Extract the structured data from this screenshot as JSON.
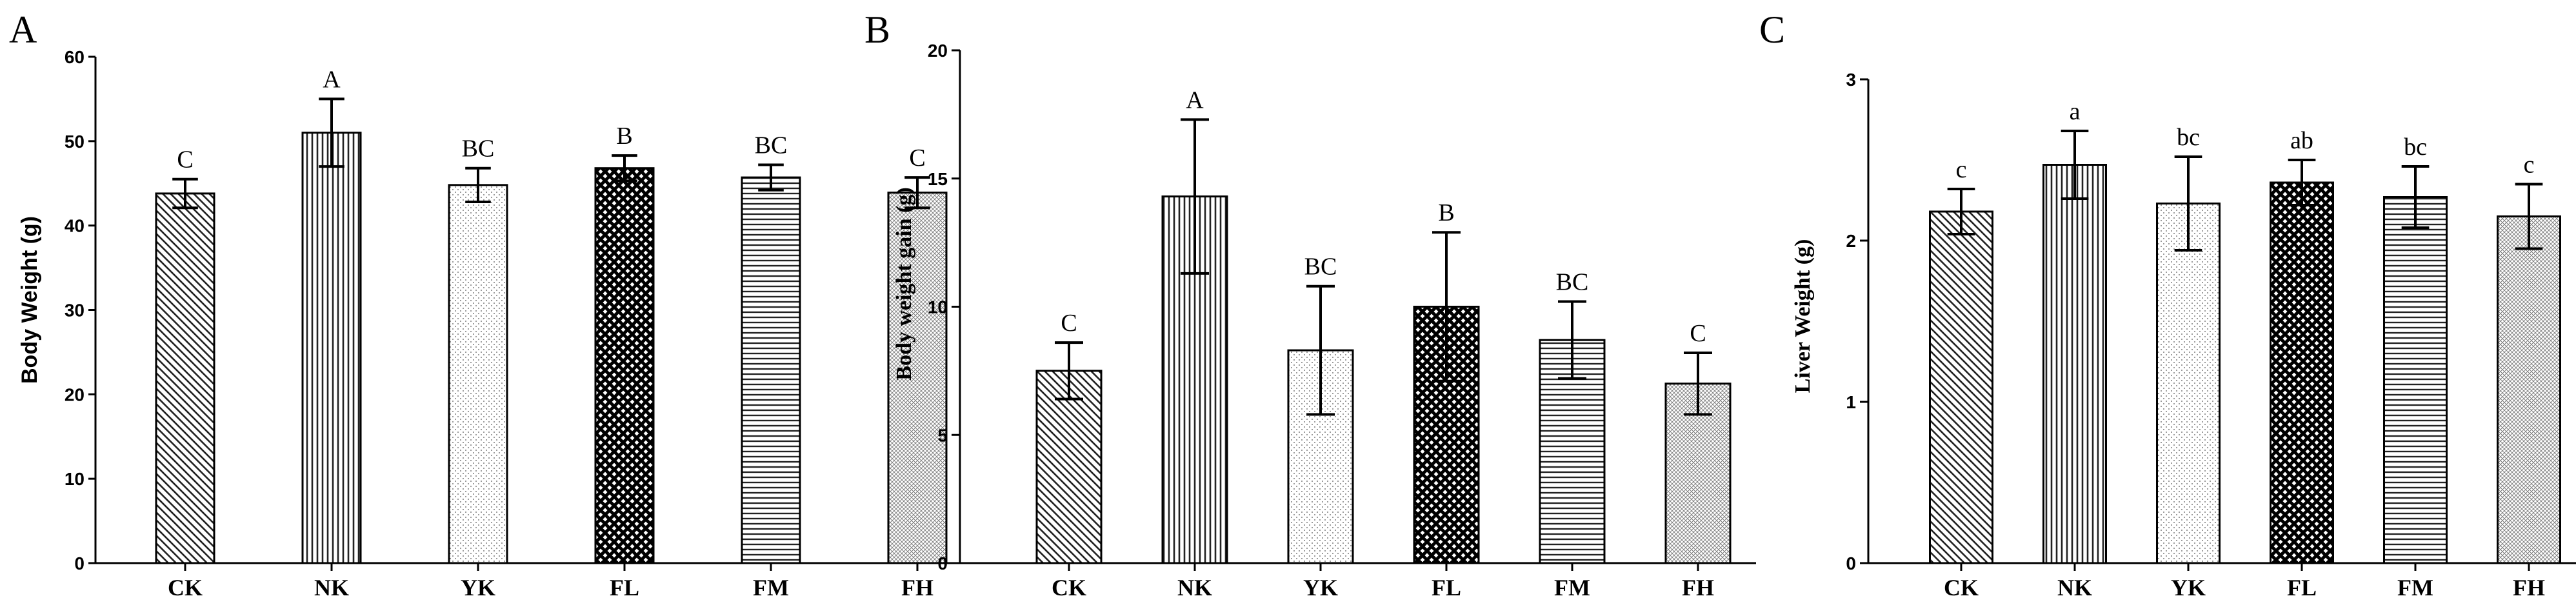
{
  "figure": {
    "panel_letters": [
      "A",
      "B",
      "C"
    ]
  },
  "chart_data": [
    {
      "panel": "A",
      "type": "bar",
      "title": "",
      "xlabel": "",
      "ylabel": "Body Weight (g)",
      "ylim": [
        0,
        60
      ],
      "yticks": [
        0,
        10,
        20,
        30,
        40,
        50,
        60
      ],
      "categories": [
        "CK",
        "NK",
        "YK",
        "FL",
        "FM",
        "FH"
      ],
      "values": [
        43.8,
        51.0,
        44.8,
        46.8,
        45.7,
        43.9
      ],
      "errors": [
        1.7,
        4.0,
        2.0,
        1.5,
        1.5,
        1.8
      ],
      "significance": [
        "C",
        "A",
        "BC",
        "B",
        "BC",
        "C"
      ],
      "patterns": [
        "diag-back",
        "vert",
        "dots",
        "cross",
        "horiz",
        "fine"
      ]
    },
    {
      "panel": "B",
      "type": "bar",
      "title": "",
      "xlabel": "",
      "ylabel": "Body weight gain (g)",
      "ylim": [
        0,
        20
      ],
      "yticks": [
        0,
        5,
        10,
        15,
        20
      ],
      "categories": [
        "CK",
        "NK",
        "YK",
        "FL",
        "FM",
        "FH"
      ],
      "values": [
        7.5,
        14.3,
        8.3,
        10.0,
        8.7,
        7.0
      ],
      "errors": [
        1.1,
        3.0,
        2.5,
        2.9,
        1.5,
        1.2
      ],
      "significance": [
        "C",
        "A",
        "BC",
        "B",
        "BC",
        "C"
      ],
      "patterns": [
        "diag-back",
        "vert",
        "dots",
        "cross",
        "horiz",
        "fine"
      ]
    },
    {
      "panel": "C",
      "type": "bar",
      "title": "",
      "xlabel": "",
      "ylabel": "Liver Weight (g)",
      "ylim": [
        0,
        3
      ],
      "yticks": [
        0,
        1,
        2,
        3
      ],
      "categories": [
        "CK",
        "NK",
        "YK",
        "FL",
        "FM",
        "FH"
      ],
      "values": [
        2.18,
        2.47,
        2.23,
        2.36,
        2.27,
        2.15
      ],
      "errors": [
        0.14,
        0.21,
        0.29,
        0.14,
        0.19,
        0.2
      ],
      "significance": [
        "c",
        "a",
        "bc",
        "ab",
        "bc",
        "c"
      ],
      "patterns": [
        "diag-back",
        "vert",
        "dots",
        "cross",
        "horiz",
        "fine"
      ]
    }
  ]
}
